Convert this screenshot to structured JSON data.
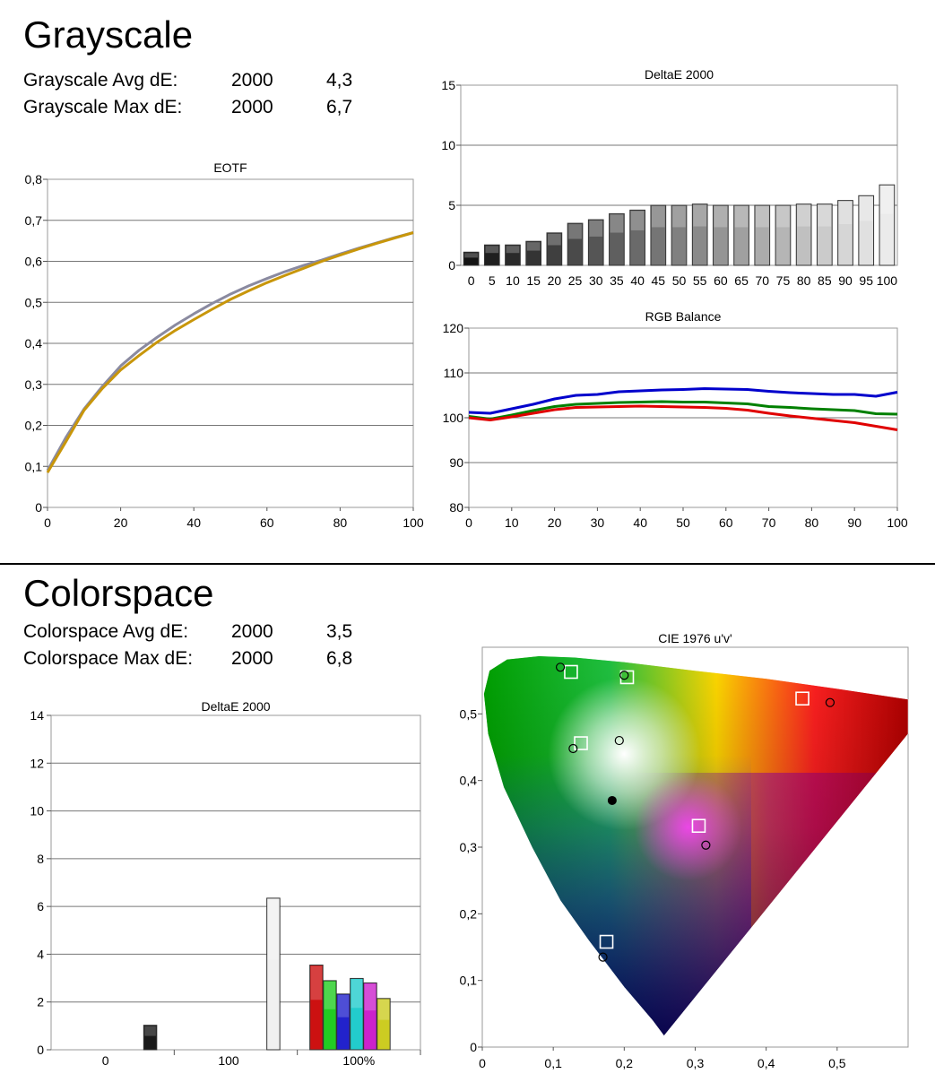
{
  "grayscale": {
    "title": "Grayscale",
    "stats": [
      {
        "label": "Grayscale Avg dE:",
        "standard": "2000",
        "value": "4,3"
      },
      {
        "label": "Grayscale Max dE:",
        "standard": "2000",
        "value": "6,7"
      }
    ]
  },
  "colorspace": {
    "title": "Colorspace",
    "stats": [
      {
        "label": "Colorspace Avg dE:",
        "standard": "2000",
        "value": "3,5"
      },
      {
        "label": "Colorspace Max dE:",
        "standard": "2000",
        "value": "6,8"
      }
    ]
  },
  "chart_data": [
    {
      "id": "eotf",
      "type": "line",
      "title": "EOTF",
      "xlim": [
        0,
        100
      ],
      "ylim": [
        0,
        0.8
      ],
      "x_ticks": [
        "0",
        "20",
        "40",
        "60",
        "80",
        "100"
      ],
      "y_ticks": [
        "0",
        "0,1",
        "0,2",
        "0,3",
        "0,4",
        "0,5",
        "0,6",
        "0,7",
        "0,8"
      ],
      "grid": true,
      "series": [
        {
          "color": "#8a8aa0",
          "x": [
            0,
            5,
            10,
            15,
            20,
            25,
            30,
            35,
            40,
            45,
            50,
            55,
            60,
            65,
            70,
            75,
            80,
            85,
            90,
            95,
            100
          ],
          "y": [
            0.09,
            0.17,
            0.24,
            0.295,
            0.345,
            0.383,
            0.415,
            0.445,
            0.472,
            0.497,
            0.52,
            0.54,
            0.558,
            0.575,
            0.59,
            0.603,
            0.618,
            0.632,
            0.645,
            0.658,
            0.67
          ]
        },
        {
          "color": "#c8960a",
          "x": [
            0,
            5,
            10,
            15,
            20,
            25,
            30,
            35,
            40,
            45,
            50,
            55,
            60,
            65,
            70,
            75,
            80,
            85,
            90,
            95,
            100
          ],
          "y": [
            0.085,
            0.16,
            0.237,
            0.29,
            0.335,
            0.37,
            0.403,
            0.432,
            0.458,
            0.483,
            0.507,
            0.528,
            0.548,
            0.566,
            0.583,
            0.6,
            0.615,
            0.63,
            0.644,
            0.657,
            0.67
          ]
        }
      ]
    },
    {
      "id": "gray-de",
      "type": "bar",
      "title": "DeltaE 2000",
      "categories": [
        "0",
        "5",
        "10",
        "15",
        "20",
        "25",
        "30",
        "35",
        "40",
        "45",
        "50",
        "55",
        "60",
        "65",
        "70",
        "75",
        "80",
        "85",
        "90",
        "95",
        "100"
      ],
      "values": [
        1.1,
        1.7,
        1.7,
        2.0,
        2.7,
        3.5,
        3.8,
        4.3,
        4.6,
        5.0,
        5.0,
        5.1,
        5.0,
        5.0,
        5.0,
        5.0,
        5.1,
        5.1,
        5.4,
        5.8,
        6.7
      ],
      "ylim": [
        0,
        15
      ],
      "y_ticks": [
        "0",
        "5",
        "10",
        "15"
      ],
      "grid": true
    },
    {
      "id": "rgb-balance",
      "type": "line",
      "title": "RGB Balance",
      "xlim": [
        0,
        100
      ],
      "ylim": [
        80,
        120
      ],
      "x_ticks": [
        "0",
        "10",
        "20",
        "30",
        "40",
        "50",
        "60",
        "70",
        "80",
        "90",
        "100"
      ],
      "y_ticks": [
        "80",
        "90",
        "100",
        "110",
        "120"
      ],
      "grid": true,
      "series": [
        {
          "color": "#0000cc",
          "x": [
            0,
            5,
            10,
            15,
            20,
            25,
            30,
            35,
            40,
            45,
            50,
            55,
            60,
            65,
            70,
            75,
            80,
            85,
            90,
            95,
            100
          ],
          "y": [
            101.2,
            101.0,
            102.0,
            103.0,
            104.2,
            105.0,
            105.2,
            105.8,
            106.0,
            106.2,
            106.3,
            106.5,
            106.4,
            106.3,
            105.9,
            105.6,
            105.4,
            105.2,
            105.2,
            104.8,
            105.7
          ]
        },
        {
          "color": "#008000",
          "x": [
            0,
            5,
            10,
            15,
            20,
            25,
            30,
            35,
            40,
            45,
            50,
            55,
            60,
            65,
            70,
            75,
            80,
            85,
            90,
            95,
            100
          ],
          "y": [
            100.3,
            99.7,
            100.6,
            101.6,
            102.5,
            103.0,
            103.2,
            103.4,
            103.5,
            103.6,
            103.5,
            103.5,
            103.3,
            103.1,
            102.5,
            102.3,
            102.0,
            101.8,
            101.6,
            100.9,
            100.8
          ]
        },
        {
          "color": "#e00000",
          "x": [
            0,
            5,
            10,
            15,
            20,
            25,
            30,
            35,
            40,
            45,
            50,
            55,
            60,
            65,
            70,
            75,
            80,
            85,
            90,
            95,
            100
          ],
          "y": [
            100.0,
            99.5,
            100.2,
            101.0,
            101.8,
            102.3,
            102.4,
            102.5,
            102.6,
            102.5,
            102.4,
            102.3,
            102.1,
            101.7,
            101.0,
            100.4,
            99.9,
            99.4,
            98.9,
            98.1,
            97.3
          ]
        }
      ]
    },
    {
      "id": "color-de",
      "type": "bar",
      "title": "DeltaE 2000",
      "ylim": [
        0,
        15
      ],
      "y_ticks": [
        "0",
        "2",
        "4",
        "6",
        "8",
        "10",
        "12",
        "14"
      ],
      "group_labels": [
        "0",
        "100",
        "100%"
      ],
      "grid": true,
      "groups": [
        {
          "bars": [
            {
              "value": 1.1,
              "color": "#1a1a1a"
            }
          ]
        },
        {
          "bars": [
            {
              "value": 6.8,
              "color": "#f0f0f0"
            }
          ]
        },
        {
          "bars": [
            {
              "value": 3.8,
              "color": "#cc1111"
            },
            {
              "value": 3.1,
              "color": "#22cc22"
            },
            {
              "value": 2.5,
              "color": "#2222cc"
            },
            {
              "value": 3.2,
              "color": "#22cccc"
            },
            {
              "value": 3.0,
              "color": "#cc22cc"
            },
            {
              "value": 2.3,
              "color": "#cccc22"
            }
          ]
        }
      ]
    },
    {
      "id": "cie",
      "type": "scatter",
      "title": "CIE 1976 u'v'",
      "xlim": [
        0,
        0.6
      ],
      "ylim": [
        0,
        0.6
      ],
      "x_ticks": [
        "0",
        "0,1",
        "0,2",
        "0,3",
        "0,4",
        "0,5"
      ],
      "y_ticks": [
        "0",
        "0,1",
        "0,2",
        "0,3",
        "0,4",
        "0,5"
      ],
      "grid": false,
      "target_points": [
        {
          "u": 0.451,
          "v": 0.523
        },
        {
          "u": 0.125,
          "v": 0.563
        },
        {
          "u": 0.175,
          "v": 0.158
        },
        {
          "u": 0.139,
          "v": 0.456
        },
        {
          "u": 0.305,
          "v": 0.332
        },
        {
          "u": 0.204,
          "v": 0.555
        }
      ],
      "measured_points": [
        {
          "u": 0.49,
          "v": 0.517
        },
        {
          "u": 0.11,
          "v": 0.57
        },
        {
          "u": 0.17,
          "v": 0.135
        },
        {
          "u": 0.128,
          "v": 0.448
        },
        {
          "u": 0.315,
          "v": 0.303
        },
        {
          "u": 0.2,
          "v": 0.558
        },
        {
          "u": 0.193,
          "v": 0.46
        }
      ],
      "white_point": {
        "u": 0.183,
        "v": 0.37
      }
    }
  ]
}
